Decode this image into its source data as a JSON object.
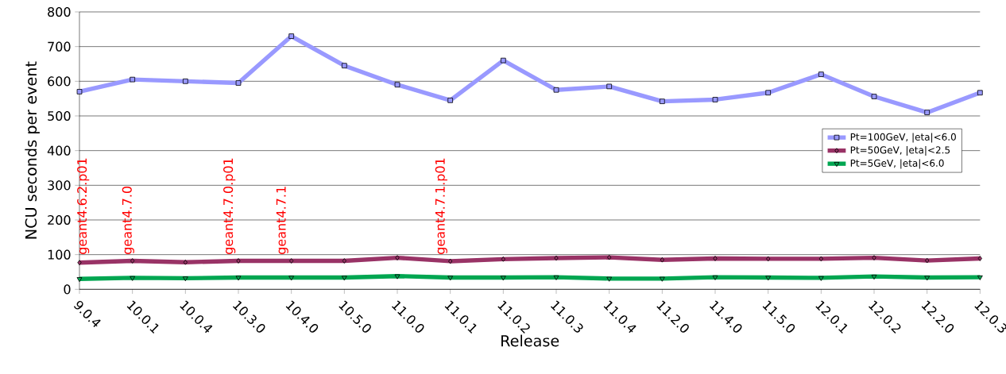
{
  "chart_data": {
    "type": "line",
    "xlabel": "Release",
    "ylabel": "NCU seconds per event",
    "categories": [
      "9.0.4",
      "10.0.1",
      "10.0.4",
      "10.3.0",
      "10.4.0",
      "10.5.0",
      "11.0.0",
      "11.0.1",
      "11.0.2",
      "11.0.3",
      "11.0.4",
      "11.2.0",
      "11.4.0",
      "11.5.0",
      "12.0.1",
      "12.0.2",
      "12.2.0",
      "12.0.3"
    ],
    "series": [
      {
        "name": "Pt=100GeV, |eta|<6.0",
        "color": "#9999ff",
        "marker": "square",
        "values": [
          570,
          605,
          600,
          595,
          730,
          645,
          590,
          545,
          660,
          575,
          585,
          542,
          547,
          567,
          620,
          556,
          510,
          567
        ]
      },
      {
        "name": "Pt=50GeV, |eta|<2.5",
        "color": "#993366",
        "marker": "diamond",
        "values": [
          77,
          82,
          78,
          82,
          82,
          82,
          91,
          81,
          87,
          90,
          92,
          85,
          89,
          88,
          88,
          91,
          83,
          89
        ]
      },
      {
        "name": "Pt=5GeV, |eta|<6.0",
        "color": "#00a651",
        "marker": "triangle",
        "values": [
          30,
          33,
          32,
          34,
          34,
          34,
          38,
          34,
          34,
          35,
          31,
          31,
          35,
          34,
          33,
          37,
          34,
          35
        ]
      }
    ],
    "ylim": [
      0,
      800
    ],
    "yticks": [
      0,
      100,
      200,
      300,
      400,
      500,
      600,
      700,
      800
    ],
    "grid": "y",
    "legend": "right",
    "line_style": "solid",
    "annotations": [
      "geant4.6.2.p01",
      "geant4.7.0",
      "geant4.7.0.p01",
      "geant4.7.1",
      "geant4.7.1.p01"
    ]
  }
}
